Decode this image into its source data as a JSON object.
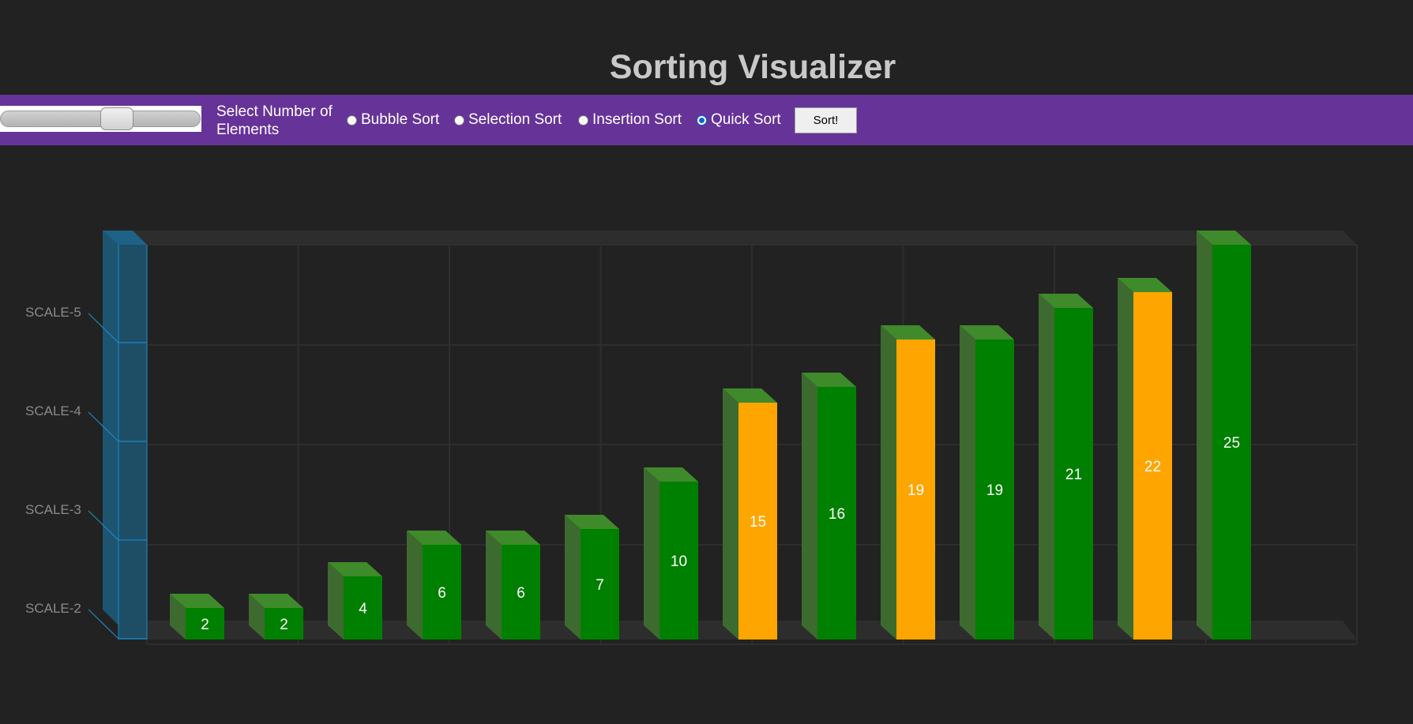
{
  "title": "Sorting Visualizer",
  "toolbar": {
    "slider_label": "Select Number of Elements",
    "slider_fraction": 0.6,
    "algorithms": [
      {
        "label": "Bubble Sort",
        "checked": false
      },
      {
        "label": "Selection Sort",
        "checked": false
      },
      {
        "label": "Insertion Sort",
        "checked": false
      },
      {
        "label": "Quick Sort",
        "checked": true
      }
    ],
    "sort_button_label": "Sort!"
  },
  "colors": {
    "background": "#222222",
    "toolbar": "#663399",
    "bar_default": "#008000",
    "bar_highlight": "#FFA500",
    "scale_axis": "#1a8ac4"
  },
  "chart_data": {
    "type": "bar",
    "scale_labels": [
      "SCALE-5",
      "SCALE-4",
      "SCALE-3",
      "SCALE-2"
    ],
    "bars": [
      {
        "value": 2,
        "highlight": false
      },
      {
        "value": 2,
        "highlight": false
      },
      {
        "value": 4,
        "highlight": false
      },
      {
        "value": 6,
        "highlight": false
      },
      {
        "value": 6,
        "highlight": false
      },
      {
        "value": 7,
        "highlight": false
      },
      {
        "value": 10,
        "highlight": false
      },
      {
        "value": 15,
        "highlight": true
      },
      {
        "value": 16,
        "highlight": false
      },
      {
        "value": 19,
        "highlight": true
      },
      {
        "value": 19,
        "highlight": false
      },
      {
        "value": 21,
        "highlight": false
      },
      {
        "value": 22,
        "highlight": true
      },
      {
        "value": 25,
        "highlight": false
      }
    ],
    "ymax": 25
  }
}
